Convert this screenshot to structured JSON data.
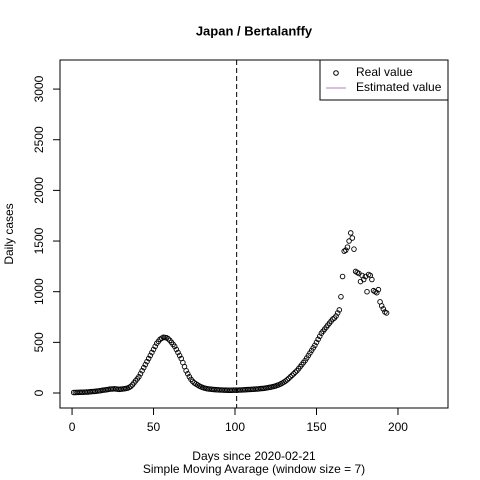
{
  "chart_data": {
    "type": "scatter",
    "title": "Japan / Bertalanffy",
    "xlabel": "Days since 2020-02-21",
    "subtitle": "Simple Moving Avarage (window size = 7)",
    "ylabel": "Daily cases",
    "xlim": [
      -7.4,
      230.7
    ],
    "ylim": [
      -148,
      3287
    ],
    "xticks": [
      0,
      50,
      100,
      150,
      200
    ],
    "yticks": [
      0,
      500,
      1000,
      1500,
      2000,
      2500,
      3000
    ],
    "vline": 101,
    "legend_position": "topright",
    "legend": [
      {
        "name": "Real value",
        "kind": "point",
        "color": "#000000"
      },
      {
        "name": "Estimated value",
        "kind": "line",
        "color": "#b07cc6"
      }
    ],
    "x": [
      1,
      2,
      3,
      4,
      5,
      6,
      7,
      8,
      9,
      10,
      11,
      12,
      13,
      14,
      15,
      16,
      17,
      18,
      19,
      20,
      21,
      22,
      23,
      24,
      25,
      26,
      27,
      28,
      29,
      30,
      31,
      32,
      33,
      34,
      35,
      36,
      37,
      38,
      39,
      40,
      41,
      42,
      43,
      44,
      45,
      46,
      47,
      48,
      49,
      50,
      51,
      52,
      53,
      54,
      55,
      56,
      57,
      58,
      59,
      60,
      61,
      62,
      63,
      64,
      65,
      66,
      67,
      68,
      69,
      70,
      71,
      72,
      73,
      74,
      75,
      76,
      77,
      78,
      79,
      80,
      81,
      82,
      83,
      84,
      85,
      86,
      87,
      88,
      89,
      90,
      91,
      92,
      93,
      94,
      95,
      96,
      97,
      98,
      99,
      100,
      101,
      102,
      103,
      104,
      105,
      106,
      107,
      108,
      109,
      110,
      111,
      112,
      113,
      114,
      115,
      116,
      117,
      118,
      119,
      120,
      121,
      122,
      123,
      124,
      125,
      126,
      127,
      128,
      129,
      130,
      131,
      132,
      133,
      134,
      135,
      136,
      137,
      138,
      139,
      140,
      141,
      142,
      143,
      144,
      145,
      146,
      147,
      148,
      149,
      150,
      151,
      152,
      153,
      154,
      155,
      156,
      157,
      158,
      159,
      160,
      161,
      162,
      163,
      164,
      165,
      166,
      167,
      168,
      169,
      170,
      171,
      172,
      173,
      174,
      175,
      176,
      177,
      178,
      179,
      180,
      181,
      182,
      183,
      184,
      185,
      186,
      187,
      188,
      189,
      190,
      191,
      192,
      193
    ],
    "series": [
      {
        "name": "Real value",
        "color": "#000000",
        "values": [
          5,
          5,
          6,
          6,
          7,
          8,
          8,
          9,
          10,
          10,
          12,
          14,
          15,
          16,
          18,
          20,
          22,
          25,
          28,
          30,
          32,
          35,
          38,
          40,
          40,
          42,
          40,
          38,
          36,
          38,
          40,
          42,
          45,
          48,
          55,
          65,
          80,
          100,
          120,
          140,
          160,
          190,
          220,
          250,
          280,
          310,
          340,
          370,
          400,
          430,
          460,
          490,
          510,
          530,
          540,
          550,
          548,
          545,
          535,
          520,
          500,
          480,
          460,
          430,
          400,
          370,
          340,
          300,
          260,
          220,
          190,
          160,
          135,
          115,
          100,
          90,
          80,
          70,
          62,
          55,
          50,
          46,
          42,
          40,
          38,
          36,
          34,
          33,
          32,
          31,
          30,
          30,
          29,
          28,
          28,
          27,
          27,
          27,
          28,
          28,
          28,
          29,
          30,
          30,
          31,
          32,
          33,
          34,
          35,
          36,
          37,
          38,
          39,
          40,
          42,
          44,
          45,
          47,
          50,
          52,
          55,
          58,
          62,
          66,
          70,
          76,
          82,
          90,
          98,
          108,
          118,
          130,
          145,
          160,
          175,
          190,
          205,
          220,
          240,
          260,
          280,
          300,
          320,
          345,
          370,
          395,
          420,
          445,
          470,
          500,
          530,
          560,
          590,
          610,
          630,
          650,
          670,
          690,
          710,
          730,
          740,
          760,
          790,
          820,
          950,
          1150,
          1400,
          1410,
          1440,
          1500,
          1580,
          1530,
          1420,
          1200,
          1190,
          1180,
          1100,
          1160,
          1120,
          1150,
          1000,
          1170,
          1160,
          1120,
          1010,
          1000,
          990,
          1020,
          900,
          860,
          830,
          800,
          790
        ]
      }
    ]
  }
}
